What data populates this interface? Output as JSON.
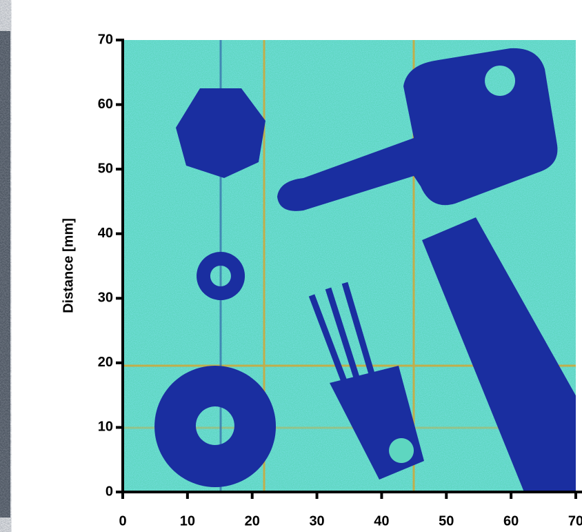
{
  "chart_data": {
    "type": "image",
    "ylabel": "Distance [mm]",
    "xlim": [
      0,
      70
    ],
    "ylim": [
      0,
      70
    ],
    "xticks": [
      0,
      10,
      20,
      30,
      40,
      50,
      60,
      70
    ],
    "yticks": [
      0,
      10,
      20,
      30,
      40,
      50,
      60,
      70
    ]
  }
}
